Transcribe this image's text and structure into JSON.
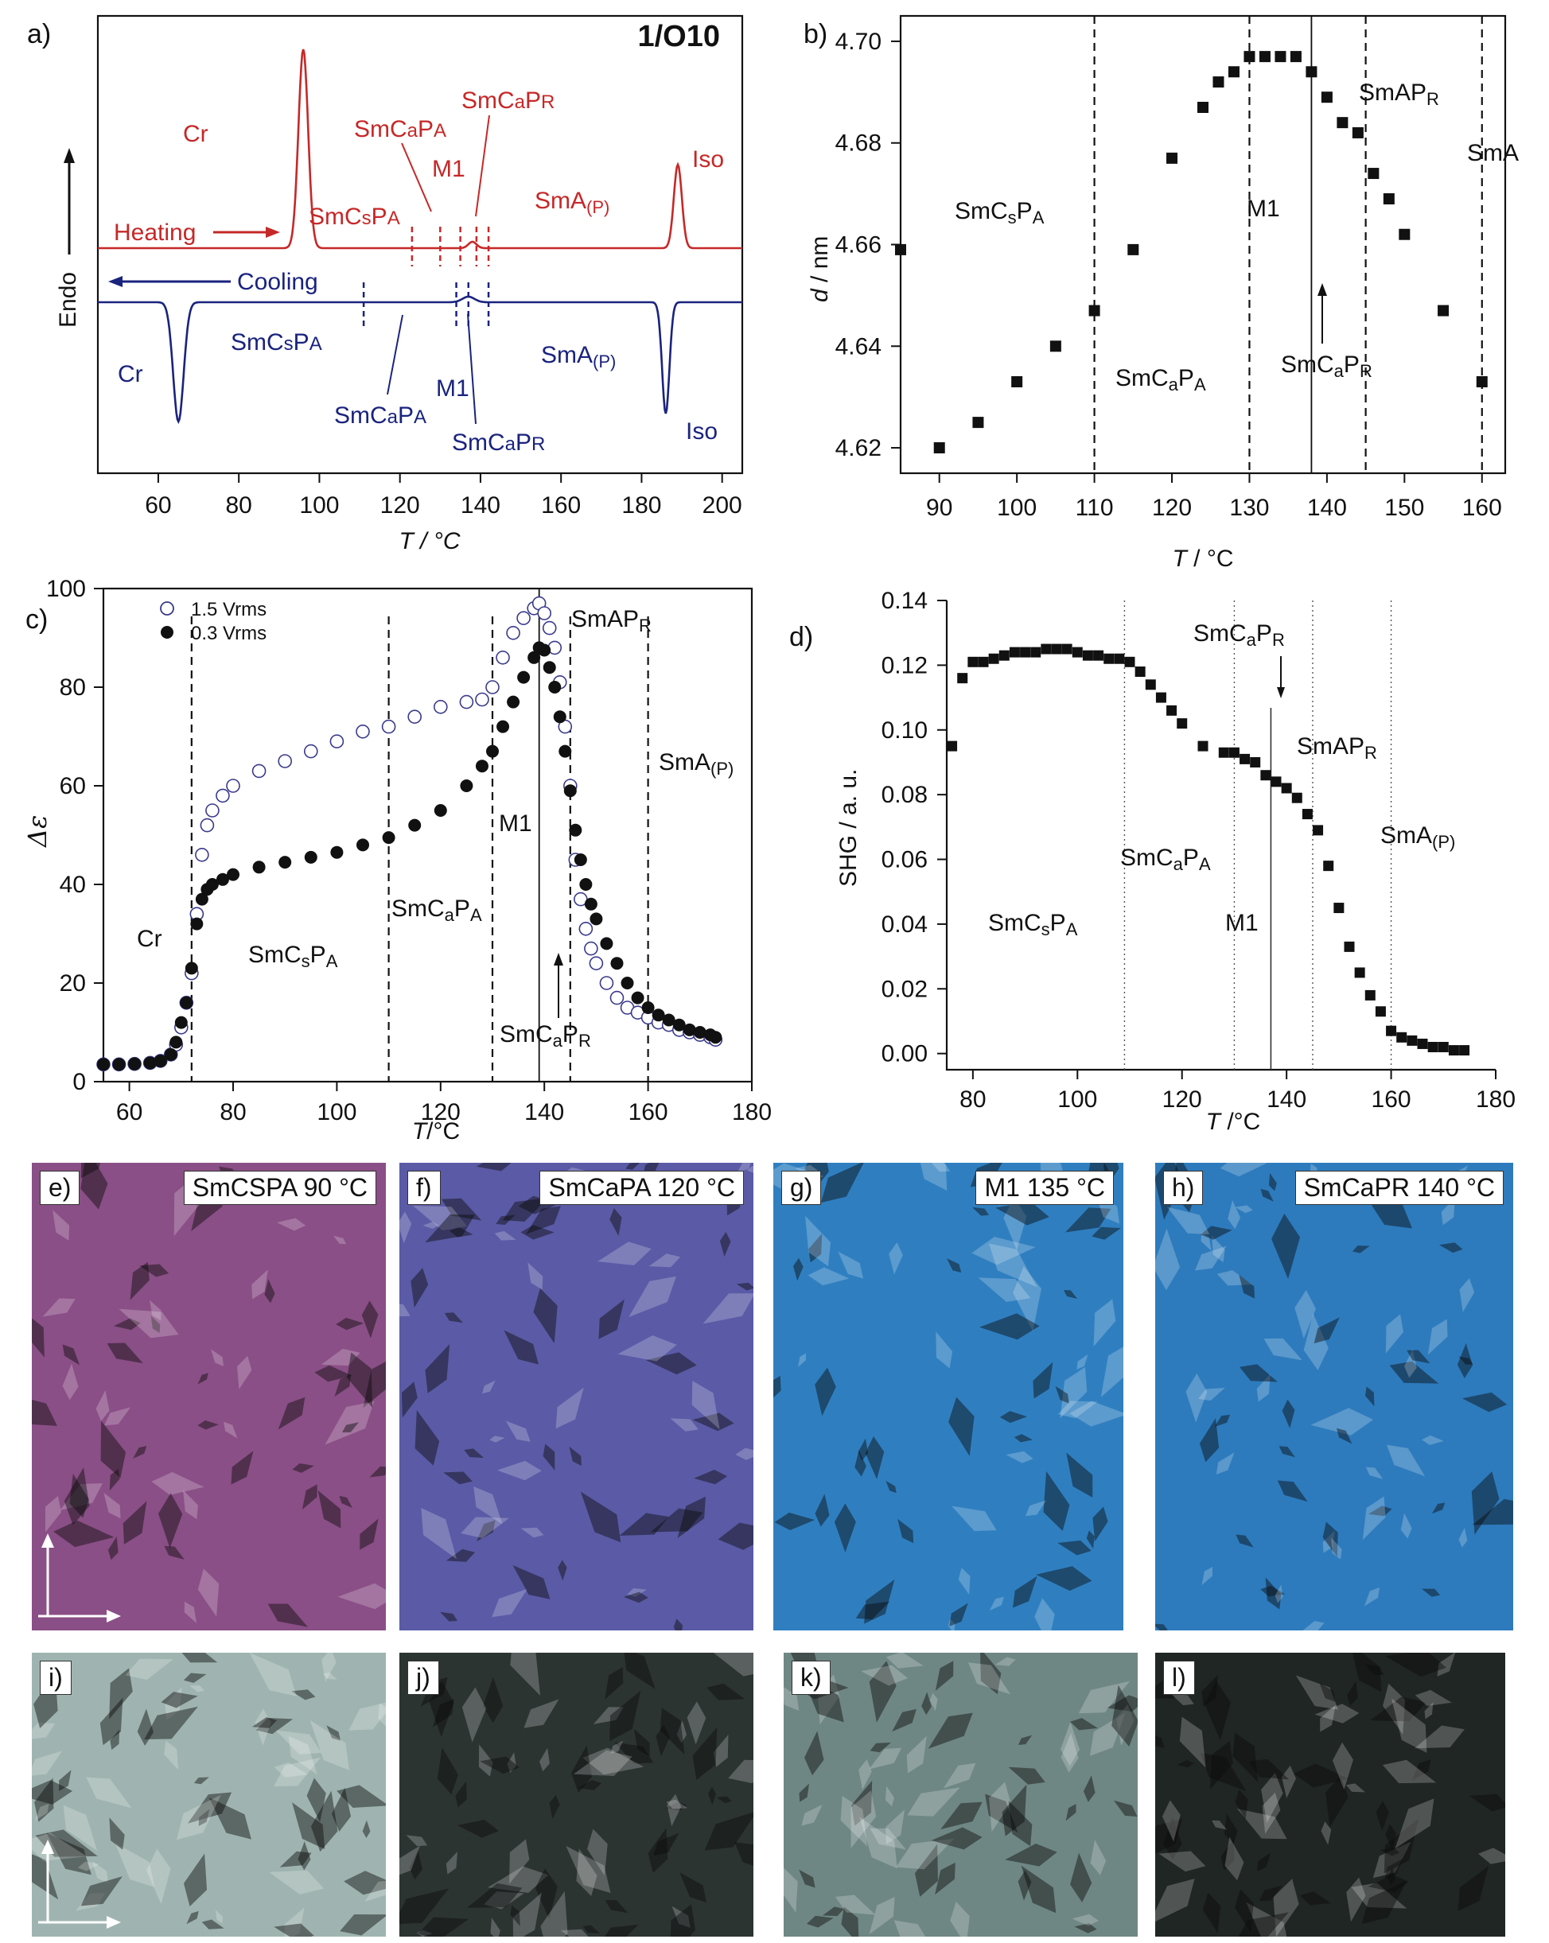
{
  "panels": {
    "a": {
      "letter": "a)",
      "sample": "1/O10",
      "xlabel": "T / °C",
      "ylabel": "Endo",
      "xticks": [
        "60",
        "80",
        "100",
        "120",
        "140",
        "160",
        "180",
        "200"
      ],
      "heating": "Heating",
      "cooling": "Cooling",
      "heat_labels": {
        "cr": "Cr",
        "smcs": "SmCsPA",
        "smca": "SmCaPA",
        "m1": "M1",
        "smcapr": "SmCaPR",
        "sma": "SmA(P)",
        "iso": "Iso"
      },
      "cool_labels": {
        "cr": "Cr",
        "smcs": "SmCsPA",
        "smca": "SmCaPA",
        "m1": "M1",
        "smcapr": "SmCaPR",
        "sma": "SmA(P)",
        "iso": "Iso"
      }
    },
    "b": {
      "letter": "b)",
      "xlabel": "T / °C",
      "ylabel": "d / nm",
      "phases": {
        "smcs": "SmCsPA",
        "smca": "SmCaPA",
        "m1": "M1",
        "smcapr": "SmCaPR",
        "smapr": "SmAPR",
        "sma": "SmA"
      }
    },
    "c": {
      "letter": "c)",
      "xlabel": "T/°C",
      "ylabel": "Δε",
      "legend": [
        "1.5 Vrms",
        "0.3 Vrms"
      ],
      "phases": {
        "cr": "Cr",
        "smcs": "SmCsPA",
        "smca": "SmCaPA",
        "m1": "M1",
        "smcapr": "SmCaPR",
        "smapr": "SmAPR",
        "sma": "SmA(P)"
      }
    },
    "d": {
      "letter": "d)",
      "xlabel": "T /°C",
      "ylabel": "SHG / a. u.",
      "phases": {
        "smcs": "SmCsPA",
        "smca": "SmCaPA",
        "m1": "M1",
        "smcapr": "SmCaPR",
        "smapr": "SmAPR",
        "sma": "SmA(P)"
      }
    }
  },
  "micrographs": [
    {
      "letter": "e)",
      "caption": "SmCSPA 90 °C",
      "tint": "#8a4f86"
    },
    {
      "letter": "f)",
      "caption": "SmCaPA 120 °C",
      "tint": "#5a5aa6"
    },
    {
      "letter": "g)",
      "caption": "M1 135 °C",
      "tint": "#2f7fc0"
    },
    {
      "letter": "h)",
      "caption": "SmCaPR 140 °C",
      "tint": "#2d7bbd"
    },
    {
      "letter": "i)",
      "tint": "#9fb4b0"
    },
    {
      "letter": "j)",
      "tint": "#2c3432"
    },
    {
      "letter": "k)",
      "tint": "#6f8784"
    },
    {
      "letter": "l)",
      "tint": "#1f2624"
    }
  ],
  "chart_data": [
    {
      "type": "line",
      "panel": "a",
      "xlabel": "T / °C",
      "ylabel": "Endo",
      "xlim": [
        45,
        205
      ],
      "series": [
        {
          "name": "Heating",
          "color": "#c62828",
          "peaks_x": [
            96,
            189
          ]
        },
        {
          "name": "Cooling",
          "color": "#1a237e",
          "peaks_x": [
            65,
            186
          ]
        }
      ],
      "heating_transitions_x": [
        123,
        130,
        135,
        139,
        142
      ],
      "cooling_transitions_x": [
        111,
        134,
        137,
        142
      ]
    },
    {
      "type": "scatter",
      "panel": "b",
      "xlabel": "T / °C",
      "ylabel": "d / nm",
      "xlim": [
        85,
        163
      ],
      "ylim": [
        4.615,
        4.705
      ],
      "xticks": [
        90,
        100,
        110,
        120,
        130,
        140,
        150,
        160
      ],
      "yticks": [
        4.62,
        4.64,
        4.66,
        4.68,
        4.7
      ],
      "x": [
        85,
        90,
        95,
        100,
        105,
        110,
        115,
        120,
        124,
        126,
        128,
        130,
        132,
        134,
        136,
        138,
        140,
        142,
        144,
        146,
        148,
        150,
        155,
        160
      ],
      "y": [
        4.659,
        4.62,
        4.625,
        4.633,
        4.64,
        4.647,
        4.659,
        4.677,
        4.687,
        4.692,
        4.694,
        4.697,
        4.697,
        4.697,
        4.697,
        4.694,
        4.689,
        4.684,
        4.682,
        4.674,
        4.669,
        4.662,
        4.647,
        4.633
      ],
      "vlines_dashed": [
        110,
        130,
        145,
        160
      ],
      "vlines_solid": [
        138
      ]
    },
    {
      "type": "scatter",
      "panel": "c",
      "xlabel": "T/°C",
      "ylabel": "Δε",
      "xlim": [
        55,
        180
      ],
      "ylim": [
        0,
        100
      ],
      "xticks": [
        60,
        80,
        100,
        120,
        140,
        160,
        180
      ],
      "yticks": [
        0,
        20,
        40,
        60,
        80,
        100
      ],
      "vlines_dashed": [
        72,
        110,
        130,
        145,
        160
      ],
      "vlines_solid": [
        139
      ],
      "series": [
        {
          "name": "1.5 Vrms",
          "style": "open",
          "x": [
            55,
            58,
            61,
            64,
            66,
            68,
            69,
            70,
            71,
            72,
            73,
            74,
            75,
            76,
            78,
            80,
            85,
            90,
            95,
            100,
            105,
            110,
            115,
            120,
            125,
            128,
            130,
            132,
            134,
            136,
            138,
            139,
            140,
            141,
            142,
            143,
            144,
            145,
            146,
            147,
            148,
            149,
            150,
            152,
            154,
            156,
            158,
            160,
            162,
            164,
            166,
            168,
            170,
            172,
            173
          ],
          "y": [
            3.5,
            3.5,
            3.6,
            3.8,
            4.2,
            5.5,
            7.5,
            11,
            16,
            22,
            34,
            46,
            52,
            55,
            58,
            60,
            63,
            65,
            67,
            69,
            71,
            72,
            74,
            76,
            77,
            77.5,
            80,
            86,
            91,
            94,
            96,
            97,
            95,
            92,
            88,
            81,
            72,
            60,
            45,
            37,
            31,
            27,
            24,
            20,
            17,
            15,
            14,
            13,
            12,
            11.5,
            10.5,
            10,
            9.5,
            9,
            8.5
          ]
        },
        {
          "name": "0.3 Vrms",
          "style": "filled",
          "x": [
            55,
            58,
            61,
            64,
            66,
            68,
            69,
            70,
            71,
            72,
            73,
            74,
            75,
            76,
            78,
            80,
            85,
            90,
            95,
            100,
            105,
            110,
            115,
            120,
            125,
            128,
            130,
            132,
            134,
            136,
            138,
            139,
            140,
            141,
            142,
            143,
            144,
            145,
            146,
            147,
            148,
            149,
            150,
            152,
            154,
            156,
            158,
            160,
            162,
            164,
            166,
            168,
            170,
            172,
            173
          ],
          "y": [
            3.5,
            3.5,
            3.6,
            3.8,
            4.2,
            5.5,
            8,
            12,
            16,
            23,
            32,
            37,
            39,
            40,
            41,
            42,
            43.5,
            44.5,
            45.5,
            46.5,
            48,
            49.5,
            52,
            55,
            60,
            64,
            67,
            72,
            77,
            82,
            86,
            88,
            87.5,
            84,
            80,
            74,
            67,
            59,
            51,
            45,
            40,
            36,
            33,
            28,
            24,
            20,
            17,
            15,
            13.5,
            12.5,
            11.5,
            10.5,
            10,
            9.5,
            9
          ]
        }
      ]
    },
    {
      "type": "scatter",
      "panel": "d",
      "xlabel": "T /°C",
      "ylabel": "SHG / a. u.",
      "xlim": [
        75,
        180
      ],
      "ylim": [
        -0.005,
        0.14
      ],
      "xticks": [
        80,
        100,
        120,
        140,
        160,
        180
      ],
      "yticks": [
        0.0,
        0.02,
        0.04,
        0.06,
        0.08,
        0.1,
        0.12,
        0.14
      ],
      "vlines_dotted": [
        109,
        130,
        145,
        160
      ],
      "vlines_solid": [
        137
      ],
      "x": [
        76,
        78,
        80,
        82,
        84,
        86,
        88,
        90,
        92,
        94,
        96,
        98,
        100,
        102,
        104,
        106,
        108,
        110,
        112,
        114,
        116,
        118,
        120,
        124,
        128,
        130,
        132,
        134,
        136,
        138,
        140,
        142,
        144,
        146,
        148,
        150,
        152,
        154,
        156,
        158,
        160,
        162,
        164,
        166,
        168,
        170,
        172,
        174
      ],
      "y": [
        0.095,
        0.116,
        0.121,
        0.121,
        0.122,
        0.123,
        0.124,
        0.124,
        0.124,
        0.125,
        0.125,
        0.125,
        0.124,
        0.123,
        0.123,
        0.122,
        0.122,
        0.121,
        0.118,
        0.114,
        0.11,
        0.106,
        0.102,
        0.095,
        0.093,
        0.093,
        0.091,
        0.09,
        0.086,
        0.084,
        0.082,
        0.079,
        0.074,
        0.069,
        0.058,
        0.045,
        0.033,
        0.025,
        0.018,
        0.013,
        0.007,
        0.005,
        0.004,
        0.003,
        0.002,
        0.002,
        0.001,
        0.001
      ]
    }
  ]
}
